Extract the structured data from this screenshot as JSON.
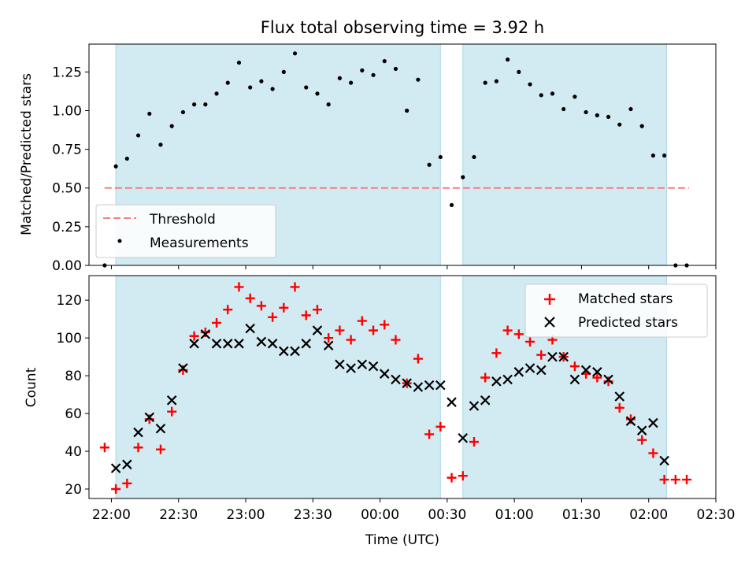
{
  "chart_data": [
    {
      "type": "scatter",
      "title": "Flux total observing time = 3.92 h",
      "ylabel": "Matched/Predicted stars",
      "xlabel": "",
      "xlim": [
        "21:50",
        "02:30"
      ],
      "ylim": [
        0,
        1.43
      ],
      "yticks": [
        0.0,
        0.25,
        0.5,
        0.75,
        1.0,
        1.25
      ],
      "ytick_labels": [
        "0.00",
        "0.25",
        "0.50",
        "0.75",
        "1.00",
        "1.25"
      ],
      "shaded_spans": [
        [
          "22:02",
          "00:27"
        ],
        [
          "00:37",
          "02:08"
        ]
      ],
      "shade_color": "#add8e6",
      "legend": {
        "placement": "lower-left",
        "entries": [
          "Threshold",
          "Measurements"
        ]
      },
      "threshold": {
        "name": "Threshold",
        "value": 0.5,
        "x_range": [
          "21:57",
          "02:18"
        ],
        "color": "#f08080"
      },
      "series": [
        {
          "name": "Measurements",
          "color": "#000000",
          "x": [
            "21:57",
            "22:02",
            "22:07",
            "22:12",
            "22:17",
            "22:22",
            "22:27",
            "22:32",
            "22:37",
            "22:42",
            "22:47",
            "22:52",
            "22:57",
            "23:02",
            "23:07",
            "23:12",
            "23:17",
            "23:22",
            "23:27",
            "23:32",
            "23:37",
            "23:42",
            "23:47",
            "23:52",
            "23:57",
            "00:02",
            "00:07",
            "00:12",
            "00:17",
            "00:22",
            "00:27",
            "00:32",
            "00:37",
            "00:42",
            "00:47",
            "00:52",
            "00:57",
            "01:02",
            "01:07",
            "01:12",
            "01:17",
            "01:22",
            "01:27",
            "01:32",
            "01:37",
            "01:42",
            "01:47",
            "01:52",
            "01:57",
            "02:02",
            "02:07",
            "02:12",
            "02:17"
          ],
          "y": [
            0.0,
            0.64,
            0.69,
            0.84,
            0.98,
            0.78,
            0.9,
            0.99,
            1.04,
            1.04,
            1.11,
            1.18,
            1.31,
            1.15,
            1.19,
            1.14,
            1.25,
            1.37,
            1.15,
            1.11,
            1.04,
            1.21,
            1.18,
            1.26,
            1.23,
            1.32,
            1.27,
            1.0,
            1.2,
            0.65,
            0.7,
            0.39,
            0.57,
            0.7,
            1.18,
            1.19,
            1.33,
            1.25,
            1.17,
            1.1,
            1.11,
            1.01,
            1.09,
            0.99,
            0.97,
            0.96,
            0.91,
            1.01,
            0.9,
            0.71,
            0.71,
            0.0,
            0.0
          ]
        }
      ]
    },
    {
      "type": "scatter",
      "title": "",
      "xlabel": "Time (UTC)",
      "ylabel": "Count",
      "xlim": [
        "21:50",
        "02:30"
      ],
      "ylim": [
        15,
        133
      ],
      "yticks": [
        20,
        40,
        60,
        80,
        100,
        120
      ],
      "xticks": [
        "22:00",
        "22:30",
        "23:00",
        "23:30",
        "00:00",
        "00:30",
        "01:00",
        "01:30",
        "02:00",
        "02:30"
      ],
      "shaded_spans": [
        [
          "22:02",
          "00:27"
        ],
        [
          "00:37",
          "02:08"
        ]
      ],
      "shade_color": "#add8e6",
      "legend": {
        "placement": "upper-right",
        "entries": [
          "Matched stars",
          "Predicted stars"
        ]
      },
      "series": [
        {
          "name": "Matched stars",
          "marker": "plus",
          "color": "#ff0000",
          "x": [
            "21:57",
            "22:02",
            "22:07",
            "22:12",
            "22:17",
            "22:22",
            "22:27",
            "22:32",
            "22:37",
            "22:42",
            "22:47",
            "22:52",
            "22:57",
            "23:02",
            "23:07",
            "23:12",
            "23:17",
            "23:22",
            "23:27",
            "23:32",
            "23:37",
            "23:42",
            "23:47",
            "23:52",
            "23:57",
            "00:02",
            "00:07",
            "00:12",
            "00:17",
            "00:22",
            "00:27",
            "00:32",
            "00:37",
            "00:42",
            "00:47",
            "00:52",
            "00:57",
            "01:02",
            "01:07",
            "01:12",
            "01:17",
            "01:22",
            "01:27",
            "01:32",
            "01:37",
            "01:42",
            "01:47",
            "01:52",
            "01:57",
            "02:02",
            "02:07",
            "02:12",
            "02:17"
          ],
          "y": [
            42,
            20,
            23,
            42,
            57,
            41,
            61,
            83,
            101,
            103,
            108,
            115,
            127,
            121,
            117,
            111,
            116,
            127,
            112,
            115,
            100,
            104,
            99,
            109,
            104,
            107,
            99,
            76,
            89,
            49,
            53,
            26,
            27,
            45,
            79,
            92,
            104,
            102,
            98,
            91,
            99,
            90,
            85,
            81,
            79,
            77,
            63,
            57,
            46,
            39,
            25,
            25,
            25
          ]
        },
        {
          "name": "Predicted stars",
          "marker": "x",
          "color": "#000000",
          "x": [
            "22:02",
            "22:07",
            "22:12",
            "22:17",
            "22:22",
            "22:27",
            "22:32",
            "22:37",
            "22:42",
            "22:47",
            "22:52",
            "22:57",
            "23:02",
            "23:07",
            "23:12",
            "23:17",
            "23:22",
            "23:27",
            "23:32",
            "23:37",
            "23:42",
            "23:47",
            "23:52",
            "23:57",
            "00:02",
            "00:07",
            "00:12",
            "00:17",
            "00:22",
            "00:27",
            "00:32",
            "00:37",
            "00:42",
            "00:47",
            "00:52",
            "00:57",
            "01:02",
            "01:07",
            "01:12",
            "01:17",
            "01:22",
            "01:27",
            "01:32",
            "01:37",
            "01:42",
            "01:47",
            "01:52",
            "01:57",
            "02:02",
            "02:07"
          ],
          "y": [
            31,
            33,
            50,
            58,
            52,
            67,
            84,
            97,
            102,
            97,
            97,
            97,
            105,
            98,
            97,
            93,
            93,
            97,
            104,
            96,
            86,
            84,
            86,
            85,
            81,
            78,
            76,
            74,
            75,
            75,
            66,
            47,
            64,
            67,
            77,
            78,
            82,
            84,
            83,
            90,
            90,
            78,
            83,
            82,
            78,
            69,
            56,
            51,
            55,
            35
          ]
        }
      ]
    }
  ]
}
